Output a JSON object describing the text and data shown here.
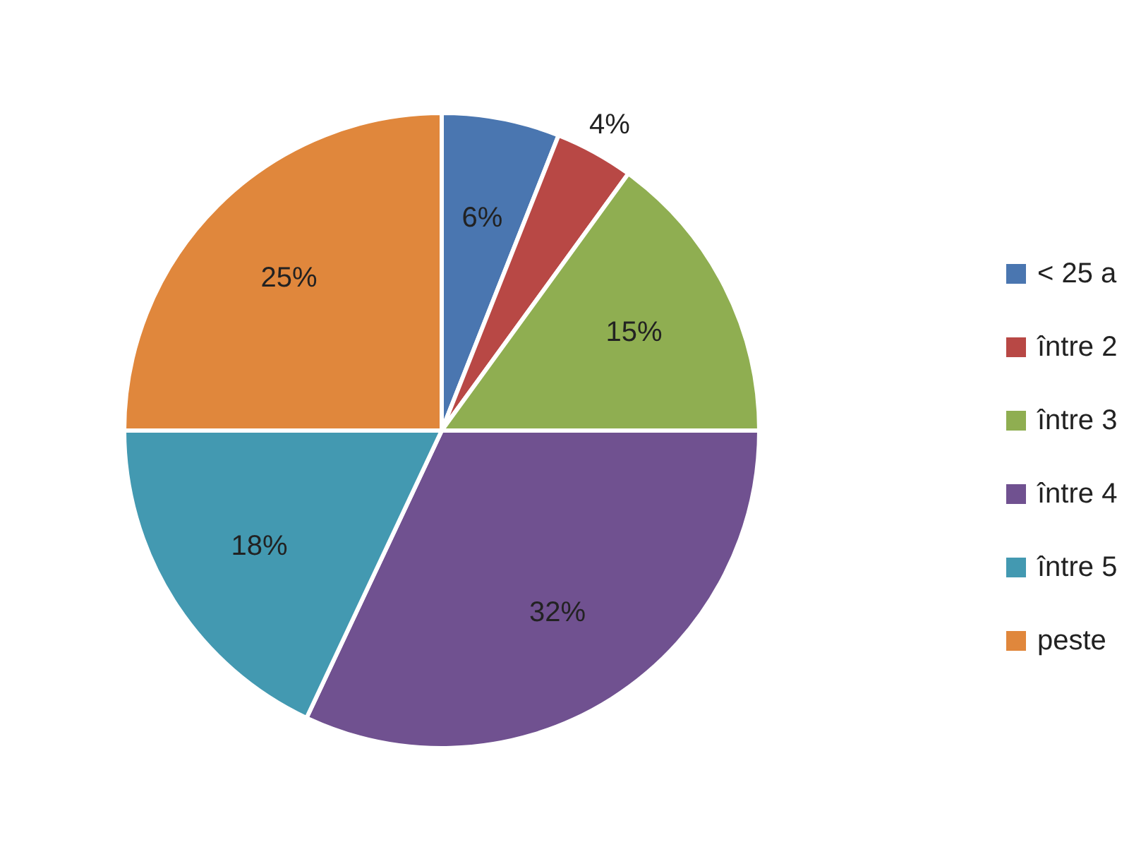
{
  "chart_data": {
    "type": "pie",
    "categories": [
      "< 25 a",
      "între 2",
      "între 3",
      "între 4",
      "între 5",
      "peste"
    ],
    "values": [
      6,
      4,
      15,
      32,
      18,
      25
    ],
    "colors": [
      "#4a76b0",
      "#b84845",
      "#8fae51",
      "#705190",
      "#4399b1",
      "#e0873c"
    ],
    "value_labels": [
      "6%",
      "4%",
      "15%",
      "32%",
      "18%",
      "25%"
    ],
    "legend": "right"
  }
}
